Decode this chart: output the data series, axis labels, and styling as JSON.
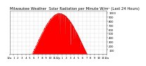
{
  "title": "Milwaukee Weather  Solar Radiation per Minute W/m² (Last 24 Hours)",
  "title_fontsize": 3.8,
  "bg_color": "#ffffff",
  "plot_bg_color": "#ffffff",
  "border_color": "#888888",
  "grid_color": "#aaaaaa",
  "fill_color": "#ff0000",
  "line_color": "#dd0000",
  "yticks": [
    100,
    200,
    300,
    400,
    500,
    600,
    700,
    800,
    900,
    1000
  ],
  "ylim": [
    0,
    1050
  ],
  "xlim": [
    0,
    1440
  ],
  "xlabel_fontsize": 2.8,
  "ylabel_fontsize": 2.8,
  "xtick_labels": [
    "12a",
    "1",
    "2",
    "3",
    "4",
    "5",
    "6",
    "7",
    "8",
    "9",
    "10",
    "11",
    "12p",
    "1",
    "2",
    "3",
    "4",
    "5",
    "6",
    "7",
    "8",
    "9",
    "10",
    "11",
    "12a"
  ],
  "num_points": 1440,
  "peak_minute": 750,
  "peak_value": 980,
  "sunrise": 330,
  "sunset": 1150
}
